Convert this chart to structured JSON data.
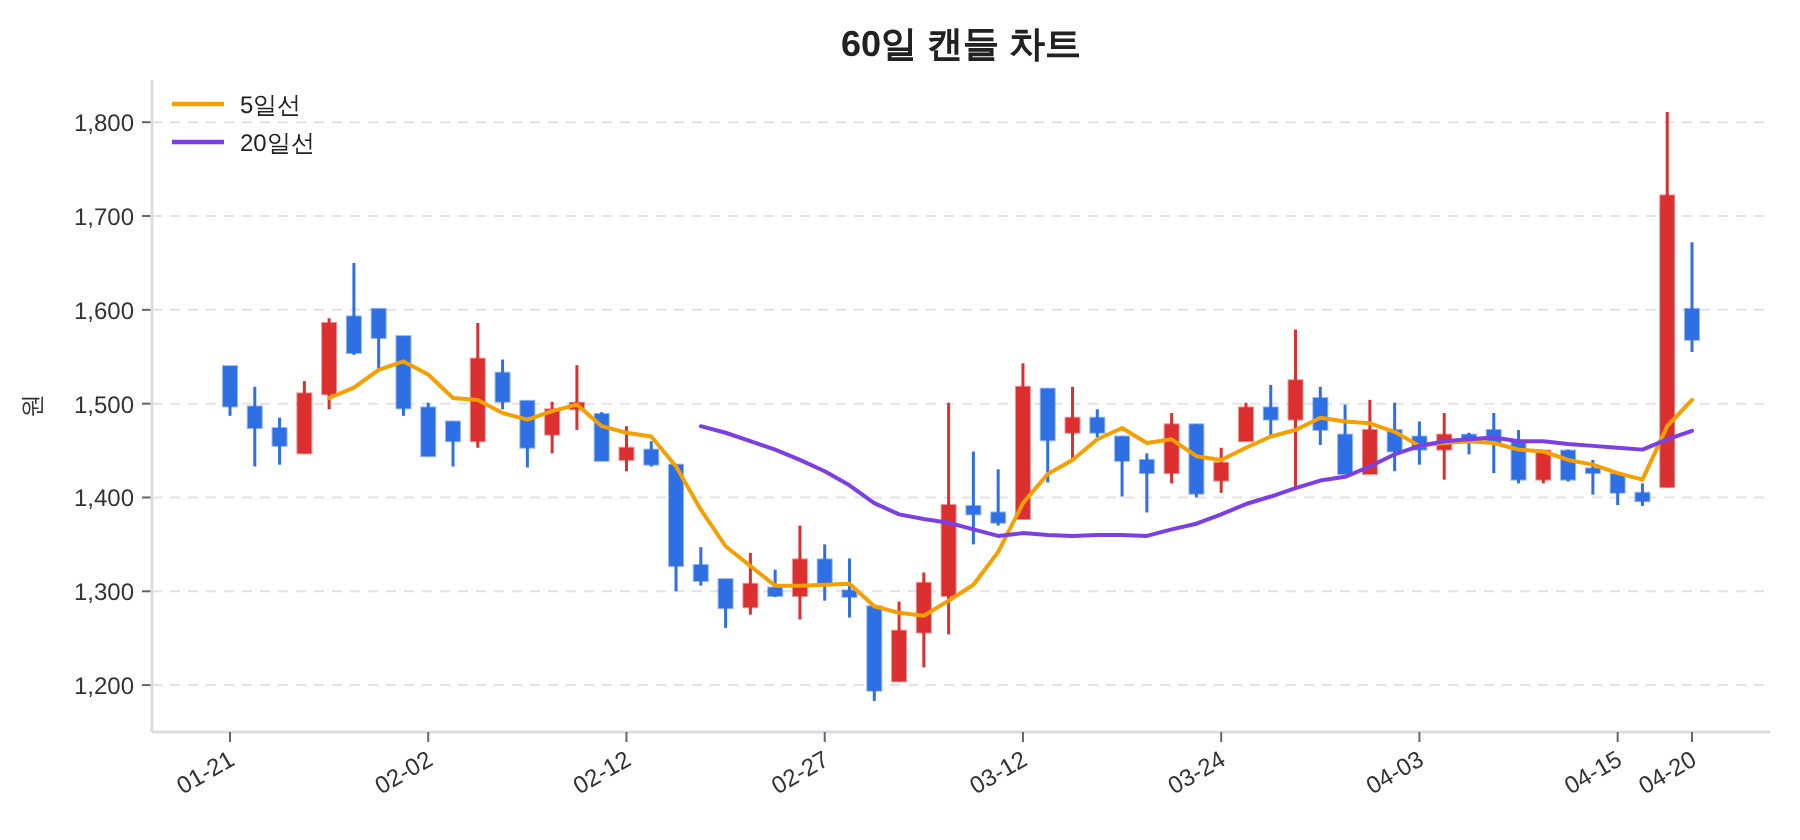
{
  "chart_data": {
    "type": "candlestick",
    "title": "60일 캔들 차트",
    "ylabel": "원",
    "categories": [
      "01-21",
      null,
      null,
      null,
      null,
      null,
      null,
      null,
      "02-02",
      null,
      null,
      null,
      null,
      null,
      null,
      null,
      "02-12",
      null,
      null,
      null,
      null,
      null,
      null,
      null,
      "02-27",
      null,
      null,
      null,
      null,
      null,
      null,
      null,
      "03-12",
      null,
      null,
      null,
      null,
      null,
      null,
      null,
      "03-24",
      null,
      null,
      null,
      null,
      null,
      null,
      null,
      "04-03",
      null,
      null,
      null,
      null,
      null,
      null,
      null,
      "04-15",
      null,
      null,
      "04-20"
    ],
    "ohlc": [
      [
        1540,
        1540,
        1487,
        1497
      ],
      [
        1497,
        1518,
        1433,
        1474
      ],
      [
        1474,
        1485,
        1435,
        1455
      ],
      [
        1447,
        1524,
        1447,
        1511
      ],
      [
        1510,
        1591,
        1494,
        1586
      ],
      [
        1593,
        1650,
        1552,
        1554
      ],
      [
        1601,
        1601,
        1536,
        1570
      ],
      [
        1572,
        1572,
        1487,
        1495
      ],
      [
        1496,
        1501,
        1444,
        1444
      ],
      [
        1481,
        1481,
        1433,
        1460
      ],
      [
        1460,
        1586,
        1453,
        1548
      ],
      [
        1533,
        1547,
        1494,
        1502
      ],
      [
        1503,
        1503,
        1432,
        1453
      ],
      [
        1467,
        1502,
        1447,
        1494
      ],
      [
        1494,
        1541,
        1472,
        1501
      ],
      [
        1489,
        1491,
        1439,
        1439
      ],
      [
        1440,
        1476,
        1428,
        1453
      ],
      [
        1451,
        1460,
        1433,
        1435
      ],
      [
        1435,
        1435,
        1300,
        1327
      ],
      [
        1328,
        1347,
        1306,
        1311
      ],
      [
        1313,
        1313,
        1261,
        1282
      ],
      [
        1283,
        1341,
        1275,
        1308
      ],
      [
        1304,
        1323,
        1294,
        1295
      ],
      [
        1295,
        1370,
        1270,
        1334
      ],
      [
        1334,
        1350,
        1290,
        1308
      ],
      [
        1301,
        1335,
        1272,
        1294
      ],
      [
        1284,
        1284,
        1183,
        1194
      ],
      [
        1204,
        1289,
        1204,
        1258
      ],
      [
        1256,
        1320,
        1219,
        1309
      ],
      [
        1295,
        1501,
        1254,
        1392
      ],
      [
        1391,
        1449,
        1350,
        1382
      ],
      [
        1384,
        1430,
        1370,
        1373
      ],
      [
        1377,
        1543,
        1377,
        1518
      ],
      [
        1516,
        1516,
        1416,
        1461
      ],
      [
        1469,
        1518,
        1440,
        1485
      ],
      [
        1485,
        1494,
        1464,
        1469
      ],
      [
        1465,
        1465,
        1401,
        1439
      ],
      [
        1440,
        1447,
        1384,
        1426
      ],
      [
        1426,
        1490,
        1415,
        1478
      ],
      [
        1478,
        1478,
        1400,
        1404
      ],
      [
        1418,
        1453,
        1405,
        1437
      ],
      [
        1460,
        1501,
        1460,
        1496
      ],
      [
        1496,
        1520,
        1465,
        1483
      ],
      [
        1483,
        1579,
        1408,
        1525
      ],
      [
        1506,
        1518,
        1456,
        1472
      ],
      [
        1467,
        1499,
        1425,
        1425
      ],
      [
        1425,
        1504,
        1425,
        1472
      ],
      [
        1472,
        1501,
        1428,
        1449
      ],
      [
        1465,
        1481,
        1435,
        1451
      ],
      [
        1451,
        1490,
        1419,
        1467
      ],
      [
        1467,
        1469,
        1446,
        1462
      ],
      [
        1472,
        1490,
        1426,
        1458
      ],
      [
        1460,
        1472,
        1415,
        1419
      ],
      [
        1419,
        1450,
        1415,
        1450
      ],
      [
        1450,
        1451,
        1417,
        1419
      ],
      [
        1431,
        1440,
        1403,
        1426
      ],
      [
        1425,
        1426,
        1392,
        1405
      ],
      [
        1405,
        1415,
        1391,
        1396
      ],
      [
        1411,
        1811,
        1411,
        1722
      ],
      [
        1601,
        1672,
        1555,
        1568
      ]
    ],
    "colors": [
      "#2f6fe4",
      "#2f6fe4",
      "#2f6fe4",
      "#dc2f2f",
      "#dc2f2f",
      "#2f6fe4",
      "#2f6fe4",
      "#2f6fe4",
      "#2f6fe4",
      "#2f6fe4",
      "#dc2f2f",
      "#2f6fe4",
      "#2f6fe4",
      "#dc2f2f",
      "#dc2f2f",
      "#2f6fe4",
      "#dc2f2f",
      "#2f6fe4",
      "#2f6fe4",
      "#2f6fe4",
      "#2f6fe4",
      "#dc2f2f",
      "#2f6fe4",
      "#dc2f2f",
      "#2f6fe4",
      "#2f6fe4",
      "#2f6fe4",
      "#dc2f2f",
      "#dc2f2f",
      "#dc2f2f",
      "#2f6fe4",
      "#2f6fe4",
      "#dc2f2f",
      "#2f6fe4",
      "#dc2f2f",
      "#2f6fe4",
      "#2f6fe4",
      "#2f6fe4",
      "#dc2f2f",
      "#2f6fe4",
      "#dc2f2f",
      "#dc2f2f",
      "#2f6fe4",
      "#dc2f2f",
      "#2f6fe4",
      "#2f6fe4",
      "#dc2f2f",
      "#2f6fe4",
      "#2f6fe4",
      "#dc2f2f",
      "#2f6fe4",
      "#2f6fe4",
      "#2f6fe4",
      "#dc2f2f",
      "#2f6fe4",
      "#2f6fe4",
      "#2f6fe4",
      "#2f6fe4",
      "#dc2f2f",
      "#2f6fe4"
    ],
    "series": [
      {
        "name": "5일선",
        "type": "line",
        "color": "#f59f00",
        "values": [
          null,
          null,
          null,
          null,
          1506,
          1517,
          1536,
          1545,
          1531,
          1506,
          1504,
          1490,
          1483,
          1492,
          1499,
          1476,
          1469,
          1465,
          1433,
          1387,
          1348,
          1327,
          1306,
          1306,
          1307,
          1308,
          1284,
          1277,
          1274,
          1290,
          1307,
          1342,
          1394,
          1425,
          1440,
          1462,
          1474,
          1458,
          1462,
          1444,
          1440,
          1453,
          1465,
          1472,
          1485,
          1481,
          1479,
          1470,
          1455,
          1458,
          1460,
          1458,
          1451,
          1449,
          1440,
          1435,
          1426,
          1419,
          1476,
          1504
        ]
      },
      {
        "name": "20일선",
        "type": "line",
        "color": "#7b3fe4",
        "values": [
          null,
          null,
          null,
          null,
          null,
          null,
          null,
          null,
          null,
          null,
          null,
          null,
          null,
          null,
          null,
          null,
          null,
          null,
          null,
          1476,
          1469,
          1460,
          1451,
          1440,
          1428,
          1413,
          1394,
          1382,
          1377,
          1373,
          1366,
          1359,
          1362,
          1360,
          1359,
          1360,
          1360,
          1359,
          1366,
          1372,
          1382,
          1393,
          1401,
          1410,
          1418,
          1422,
          1433,
          1446,
          1455,
          1460,
          1462,
          1464,
          1460,
          1460,
          1457,
          1455,
          1453,
          1451,
          1462,
          1471
        ]
      }
    ],
    "ylim": [
      1150,
      1845
    ],
    "yticks": [
      {
        "value": 1200,
        "label": "1,200"
      },
      {
        "value": 1300,
        "label": "1,300"
      },
      {
        "value": 1400,
        "label": "1,400"
      },
      {
        "value": 1500,
        "label": "1,500"
      },
      {
        "value": 1600,
        "label": "1,600"
      },
      {
        "value": 1700,
        "label": "1,700"
      },
      {
        "value": 1800,
        "label": "1,800"
      }
    ],
    "grid": "y",
    "legend": "top left"
  }
}
